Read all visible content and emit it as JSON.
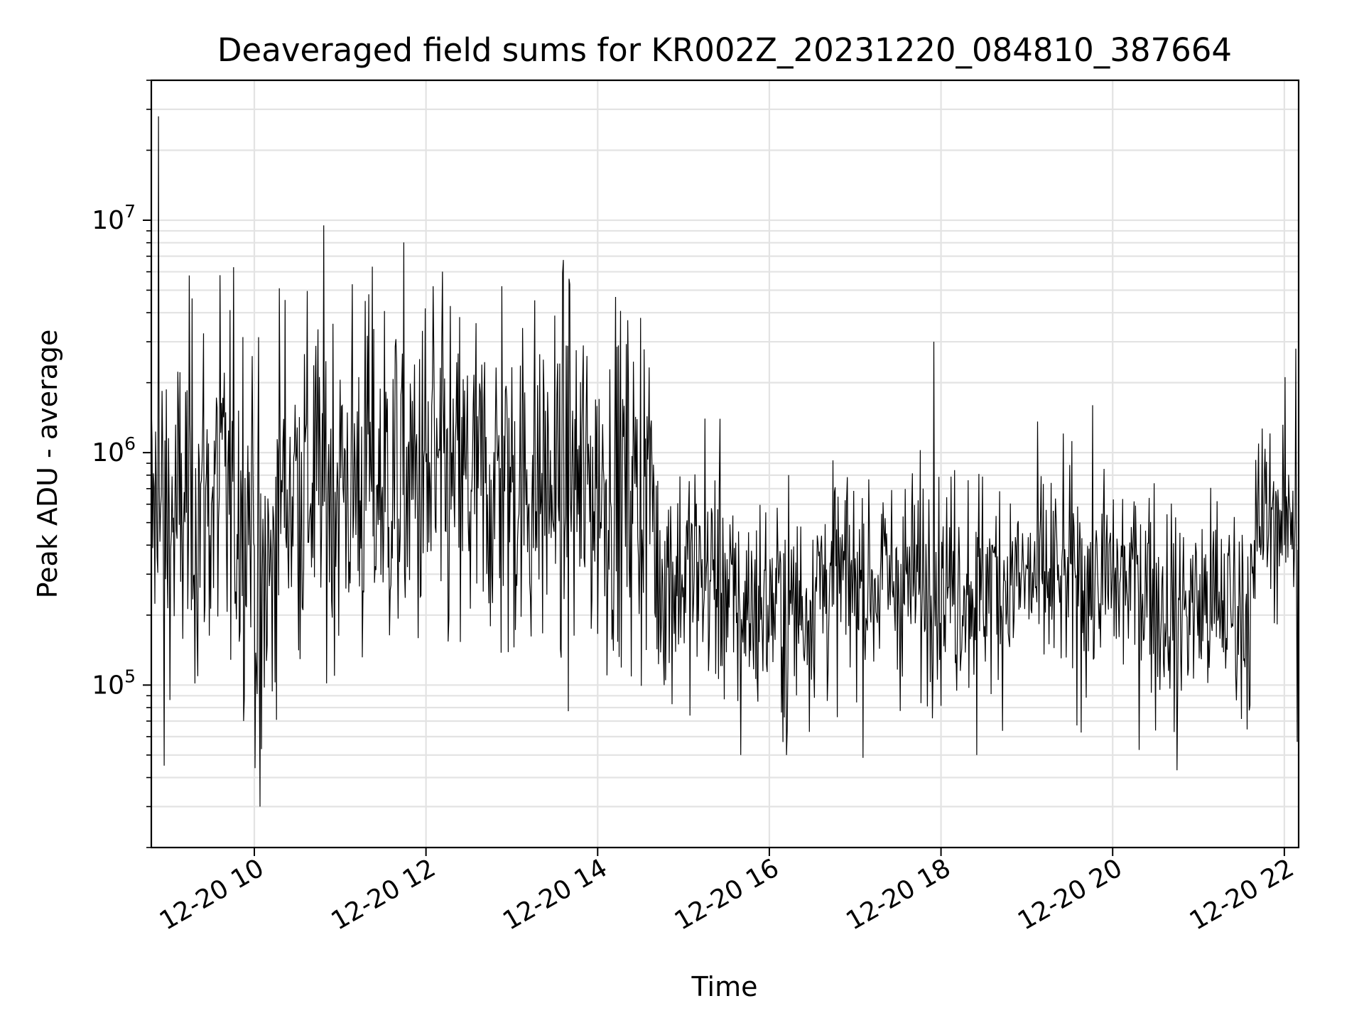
{
  "chart_data": {
    "type": "line",
    "title": "Deaveraged field sums for KR002Z_20231220_084810_387664",
    "xlabel": "Time",
    "ylabel": "Peak ADU - average",
    "y_scale": "log",
    "xlim": [
      "2023-12-20 08:48",
      "2023-12-20 22:10"
    ],
    "ylim": [
      20000,
      40000000
    ],
    "x_ticks": [
      {
        "value": "2023-12-20 10:00",
        "label": "12-20 10"
      },
      {
        "value": "2023-12-20 12:00",
        "label": "12-20 12"
      },
      {
        "value": "2023-12-20 14:00",
        "label": "12-20 14"
      },
      {
        "value": "2023-12-20 16:00",
        "label": "12-20 16"
      },
      {
        "value": "2023-12-20 18:00",
        "label": "12-20 18"
      },
      {
        "value": "2023-12-20 20:00",
        "label": "12-20 20"
      },
      {
        "value": "2023-12-20 22:00",
        "label": "12-20 22"
      }
    ],
    "y_ticks": [
      {
        "value": 100000,
        "base": "10",
        "exp": "5"
      },
      {
        "value": 1000000,
        "base": "10",
        "exp": "6"
      },
      {
        "value": 10000000,
        "base": "10",
        "exp": "7"
      }
    ],
    "grid": true,
    "line_color": "#000000",
    "series": [
      {
        "segments": [
          {
            "start": "2023-12-20 08:48",
            "end": "2023-12-20 09:10",
            "median": 500000,
            "spread": 0.38
          },
          {
            "start": "2023-12-20 09:10",
            "end": "2023-12-20 10:00",
            "median": 620000,
            "spread": 0.4
          },
          {
            "start": "2023-12-20 10:00",
            "end": "2023-12-20 10:15",
            "median": 280000,
            "spread": 0.38
          },
          {
            "start": "2023-12-20 10:15",
            "end": "2023-12-20 12:00",
            "median": 750000,
            "spread": 0.4
          },
          {
            "start": "2023-12-20 12:00",
            "end": "2023-12-20 14:40",
            "median": 720000,
            "spread": 0.38
          },
          {
            "start": "2023-12-20 14:40",
            "end": "2023-12-20 15:30",
            "median": 300000,
            "spread": 0.26
          },
          {
            "start": "2023-12-20 15:30",
            "end": "2023-12-20 16:30",
            "median": 220000,
            "spread": 0.24
          },
          {
            "start": "2023-12-20 16:30",
            "end": "2023-12-20 20:30",
            "median": 280000,
            "spread": 0.24
          },
          {
            "start": "2023-12-20 20:30",
            "end": "2023-12-20 21:40",
            "median": 220000,
            "spread": 0.24
          },
          {
            "start": "2023-12-20 21:40",
            "end": "2023-12-20 22:10",
            "median": 520000,
            "spread": 0.2
          }
        ],
        "spikes": [
          {
            "time": "2023-12-20 08:53",
            "value": 28000000
          },
          {
            "time": "2023-12-20 08:57",
            "value": 45000
          },
          {
            "time": "2023-12-20 09:36",
            "value": 5800000
          },
          {
            "time": "2023-12-20 10:04",
            "value": 30000
          },
          {
            "time": "2023-12-20 10:05",
            "value": 53000
          },
          {
            "time": "2023-12-20 11:20",
            "value": 4800000
          },
          {
            "time": "2023-12-20 12:05",
            "value": 5200000
          },
          {
            "time": "2023-12-20 12:53",
            "value": 5200000
          },
          {
            "time": "2023-12-20 13:40",
            "value": 5600000
          },
          {
            "time": "2023-12-20 14:30",
            "value": 3800000
          },
          {
            "time": "2023-12-20 15:15",
            "value": 1400000
          },
          {
            "time": "2023-12-20 15:40",
            "value": 50000
          },
          {
            "time": "2023-12-20 16:12",
            "value": 50000
          },
          {
            "time": "2023-12-20 17:55",
            "value": 3000000
          },
          {
            "time": "2023-12-20 18:25",
            "value": 50000
          },
          {
            "time": "2023-12-20 20:45",
            "value": 43000
          },
          {
            "time": "2023-12-20 22:08",
            "value": 2800000
          },
          {
            "time": "2023-12-20 22:09",
            "value": 57000
          }
        ]
      }
    ]
  }
}
